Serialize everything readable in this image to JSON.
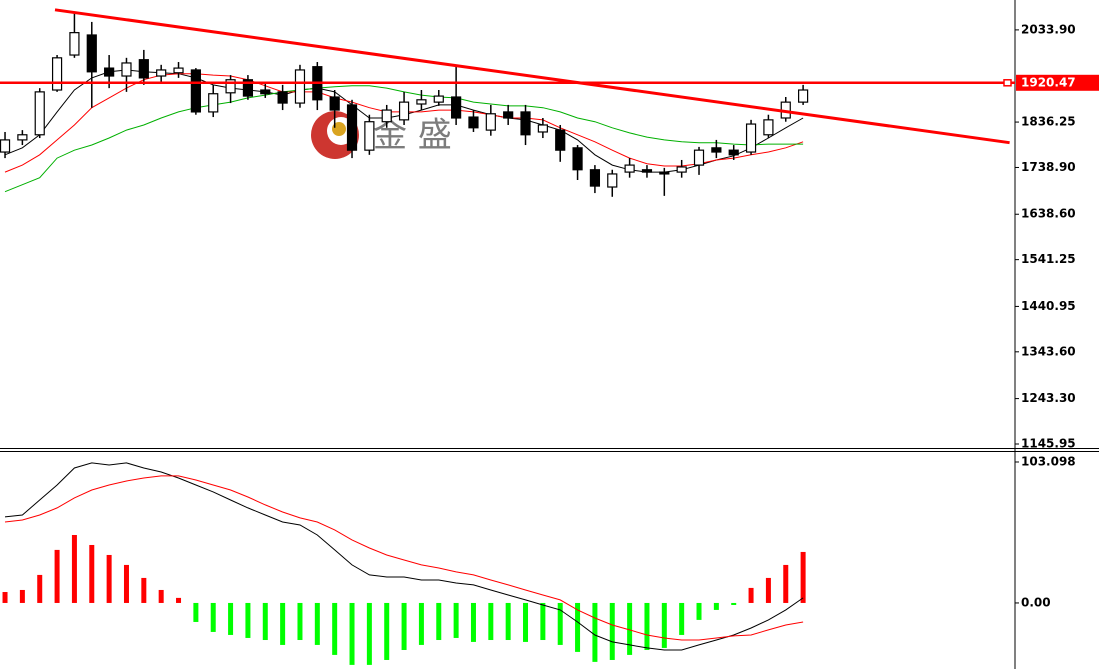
{
  "chart_data": [
    {
      "type": "candlestick",
      "open": [
        1772,
        1798,
        1809,
        1905,
        1980,
        2023,
        1952,
        1935,
        1970,
        1935,
        1942,
        1948,
        1858,
        1899,
        1927,
        1905,
        1901,
        1877,
        1955,
        1890,
        1873,
        1776,
        1837,
        1841,
        1875,
        1879,
        1890,
        1847,
        1819,
        1858,
        1858,
        1815,
        1819,
        1781,
        1734,
        1697,
        1729,
        1734,
        1729,
        1729,
        1744,
        1781,
        1776,
        1772,
        1809,
        1845,
        1879
      ],
      "high": [
        1815,
        1819,
        1909,
        1980,
        2072,
        2051,
        1980,
        1974,
        1991,
        1959,
        1965,
        1952,
        1916,
        1937,
        1937,
        1922,
        1916,
        1959,
        1965,
        1905,
        1884,
        1852,
        1873,
        1901,
        1905,
        1905,
        1959,
        1862,
        1873,
        1873,
        1873,
        1845,
        1830,
        1787,
        1744,
        1734,
        1759,
        1744,
        1738,
        1755,
        1783,
        1798,
        1787,
        1841,
        1852,
        1890,
        1916
      ],
      "low": [
        1759,
        1787,
        1802,
        1901,
        1974,
        1867,
        1909,
        1901,
        1916,
        1922,
        1931,
        1852,
        1847,
        1877,
        1884,
        1888,
        1862,
        1867,
        1862,
        1824,
        1759,
        1766,
        1824,
        1830,
        1862,
        1871,
        1830,
        1815,
        1807,
        1830,
        1787,
        1802,
        1751,
        1712,
        1684,
        1676,
        1717,
        1717,
        1678,
        1717,
        1723,
        1759,
        1755,
        1766,
        1802,
        1837,
        1873
      ],
      "close": [
        1798,
        1809,
        1901,
        1974,
        2028,
        1944,
        1935,
        1963,
        1931,
        1948,
        1952,
        1858,
        1897,
        1927,
        1892,
        1897,
        1877,
        1948,
        1884,
        1862,
        1776,
        1837,
        1862,
        1879,
        1884,
        1892,
        1845,
        1824,
        1854,
        1845,
        1809,
        1830,
        1776,
        1734,
        1699,
        1725,
        1744,
        1729,
        1725,
        1740,
        1776,
        1772,
        1766,
        1832,
        1841,
        1879,
        1905
      ],
      "up_color": "#ffffff",
      "down_color": "#000000",
      "series": [
        {
          "color": "#000000",
          "values": [
            1766,
            1781,
            1809,
            1858,
            1905,
            1931,
            1944,
            1948,
            1944,
            1942,
            1940,
            1931,
            1916,
            1909,
            1905,
            1901,
            1894,
            1905,
            1909,
            1901,
            1873,
            1845,
            1845,
            1852,
            1862,
            1873,
            1873,
            1862,
            1852,
            1845,
            1841,
            1830,
            1819,
            1798,
            1766,
            1744,
            1734,
            1729,
            1729,
            1734,
            1744,
            1755,
            1764,
            1781,
            1802,
            1824,
            1845
          ]
        },
        {
          "color": "#ff0000",
          "values": [
            1729,
            1744,
            1766,
            1798,
            1830,
            1867,
            1888,
            1909,
            1927,
            1937,
            1940,
            1940,
            1937,
            1935,
            1927,
            1914,
            1901,
            1901,
            1901,
            1888,
            1879,
            1867,
            1858,
            1858,
            1858,
            1862,
            1862,
            1858,
            1852,
            1845,
            1845,
            1841,
            1824,
            1809,
            1794,
            1776,
            1759,
            1747,
            1742,
            1742,
            1747,
            1755,
            1759,
            1766,
            1772,
            1781,
            1794
          ]
        },
        {
          "color": "#00b000",
          "values": [
            1687,
            1702,
            1717,
            1759,
            1776,
            1787,
            1802,
            1819,
            1830,
            1845,
            1858,
            1867,
            1873,
            1879,
            1888,
            1894,
            1901,
            1905,
            1909,
            1912,
            1914,
            1914,
            1909,
            1901,
            1894,
            1890,
            1888,
            1879,
            1875,
            1871,
            1871,
            1867,
            1858,
            1845,
            1837,
            1824,
            1813,
            1804,
            1798,
            1794,
            1792,
            1792,
            1789,
            1787,
            1789,
            1789,
            1789
          ]
        }
      ],
      "trend_line": {
        "x": [
          2.88,
          57.9
        ],
        "values": [
          2077,
          1792
        ],
        "color": "#ff0000"
      },
      "level_line": {
        "value": 1920.47,
        "color": "#ff0000"
      },
      "watermark": "金 盛",
      "xlim": [
        -0.29,
        58.04
      ],
      "ylim": [
        1139.5,
        2098
      ],
      "yticks": [
        {
          "value": 2033.9,
          "label": "2033.90"
        },
        1836.25,
        {
          "value": 1738.9,
          "label": "1738.90"
        },
        {
          "value": 1638.6,
          "label": "1638.60"
        },
        1541.25,
        1440.95,
        {
          "value": 1343.6,
          "label": "1343.60"
        },
        {
          "value": 1243.3,
          "label": "1243.30"
        },
        1145.95
      ]
    },
    {
      "type": "macd",
      "histogram": [
        8,
        9.5,
        20.5,
        38.8,
        49.7,
        42.4,
        35.1,
        27.8,
        18.3,
        9.5,
        3.7,
        -13.9,
        -21.2,
        -23.4,
        -25.6,
        -27.1,
        -30.7,
        -27.1,
        -30.7,
        -38,
        -45.3,
        -45.3,
        -41.7,
        -34.4,
        -30.7,
        -27.1,
        -25.6,
        -28.5,
        -27.1,
        -27.1,
        -28.5,
        -27.1,
        -30.7,
        -35.8,
        -43.1,
        -41.7,
        -38,
        -34.4,
        -32.9,
        -23.4,
        -12.4,
        -5.1,
        -1.5,
        11,
        18.3,
        27.8,
        37.3
      ],
      "up_color": "#ff0000",
      "down_color": "#00ff00",
      "series": [
        {
          "color": "#000000",
          "values": [
            62.9,
            64.3,
            75.3,
            86.3,
            98.7,
            102.4,
            100.9,
            102.4,
            98.7,
            95.8,
            91.4,
            86.3,
            81.2,
            75.3,
            69.5,
            64.3,
            59.2,
            57,
            49.7,
            38.8,
            27.8,
            20.5,
            19,
            19,
            16.8,
            16.8,
            14.6,
            13.2,
            9.5,
            5.8,
            2.2,
            -1.5,
            -5.1,
            -13.9,
            -23.4,
            -28.5,
            -30.7,
            -32.9,
            -34.4,
            -34.4,
            -30.7,
            -27.1,
            -23.4,
            -18.3,
            -12.4,
            -5.1,
            3.7
          ]
        },
        {
          "color": "#ff0000",
          "values": [
            59.2,
            60.7,
            64.3,
            69.5,
            76.8,
            82.6,
            86.3,
            89.2,
            91.4,
            92.9,
            92.9,
            89.9,
            86.3,
            82.6,
            77.5,
            71.7,
            66.5,
            62.2,
            59.2,
            53.4,
            46.1,
            40.2,
            35.1,
            31.4,
            27.8,
            25.6,
            22.7,
            20.5,
            16.8,
            13.2,
            9.5,
            5.8,
            2.2,
            -5.1,
            -11,
            -16.1,
            -19.7,
            -23.4,
            -25.6,
            -27.1,
            -27.1,
            -25.6,
            -24.1,
            -23.4,
            -19.7,
            -16.1,
            -13.9
          ]
        }
      ],
      "xlim": [
        -0.29,
        58.04
      ],
      "ylim": [
        -48.3,
        110.4
      ],
      "yticks": [
        103.098,
        {
          "value": 0,
          "label": "0.00"
        }
      ]
    }
  ]
}
